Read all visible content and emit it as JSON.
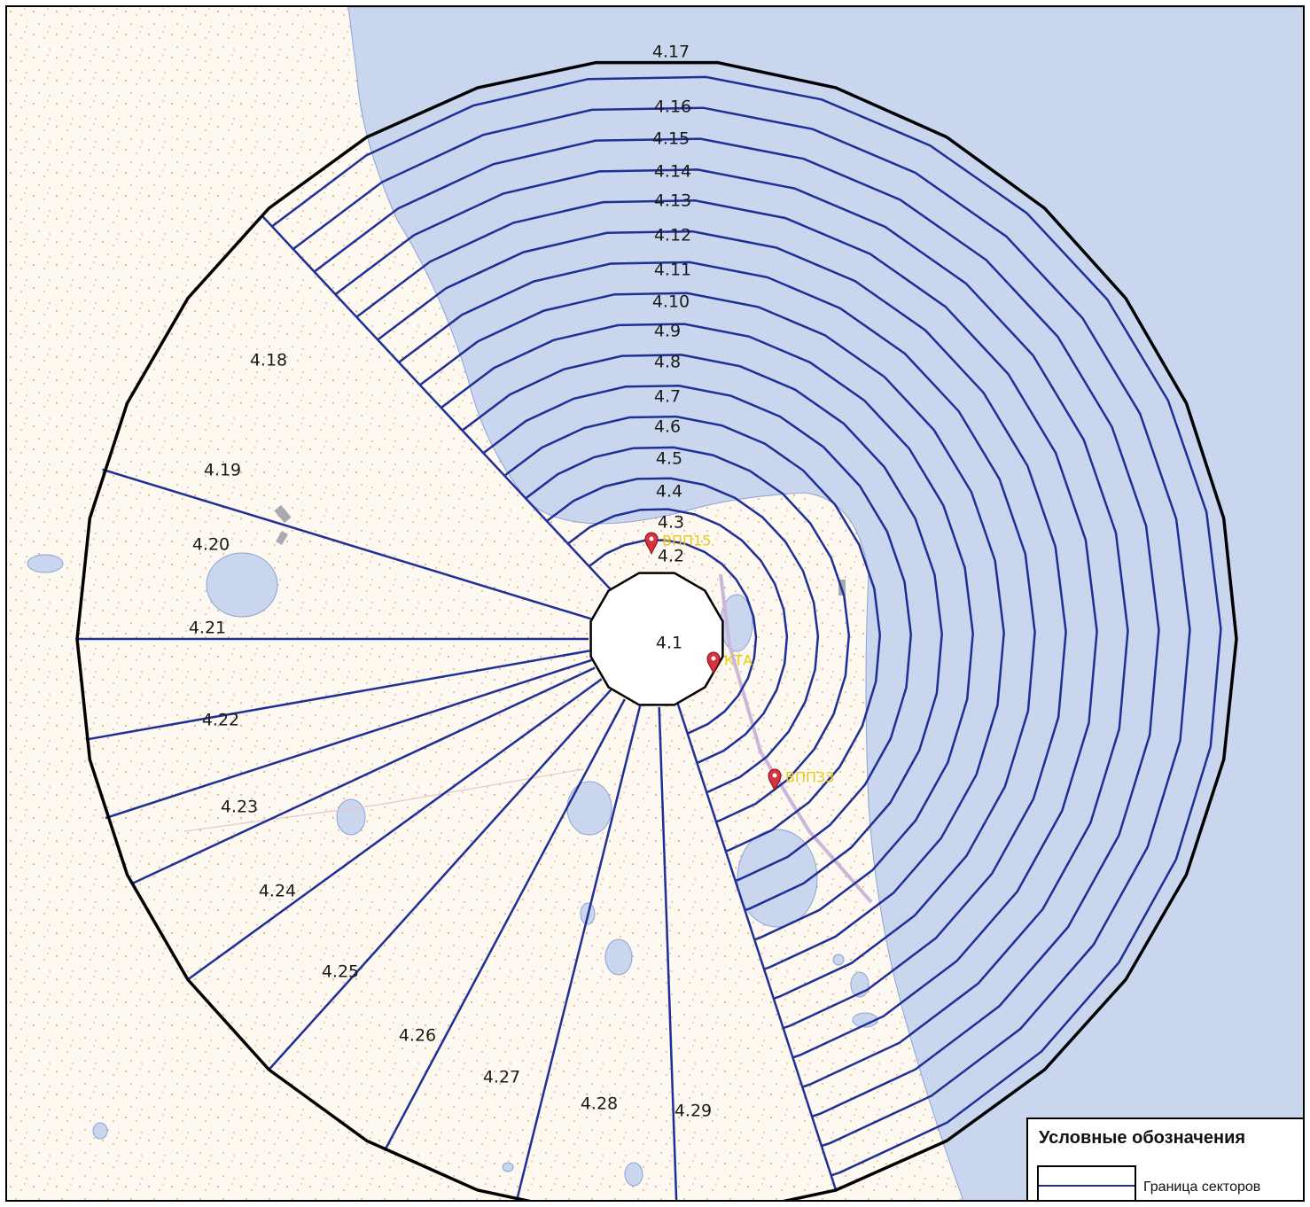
{
  "map": {
    "colors": {
      "land": "#fdf8f0",
      "water": "#c9d6ee",
      "water_edge": "#8aa3d8",
      "sector_line": "#1f2f96",
      "outer_boundary": "#000000",
      "marker": "#d8323c",
      "marker_label": "#e8c81a"
    },
    "sector_labels": [
      "4.1",
      "4.2",
      "4.3",
      "4.4",
      "4.5",
      "4.6",
      "4.7",
      "4.8",
      "4.9",
      "4.10",
      "4.11",
      "4.12",
      "4.13",
      "4.14",
      "4.15",
      "4.16",
      "4.17",
      "4.18",
      "4.19",
      "4.20",
      "4.21",
      "4.22",
      "4.23",
      "4.24",
      "4.25",
      "4.26",
      "4.27",
      "4.28",
      "4.29"
    ],
    "markers": [
      {
        "label": "ВПП15",
        "icon": "map-pin-icon"
      },
      {
        "label": "КТА",
        "icon": "map-pin-icon"
      },
      {
        "label": "ВПП33",
        "icon": "map-pin-icon"
      }
    ]
  },
  "legend": {
    "title": "Условные обозначения",
    "items": [
      {
        "label": "Граница секторов",
        "symbol": "line-swatch-icon"
      }
    ]
  }
}
